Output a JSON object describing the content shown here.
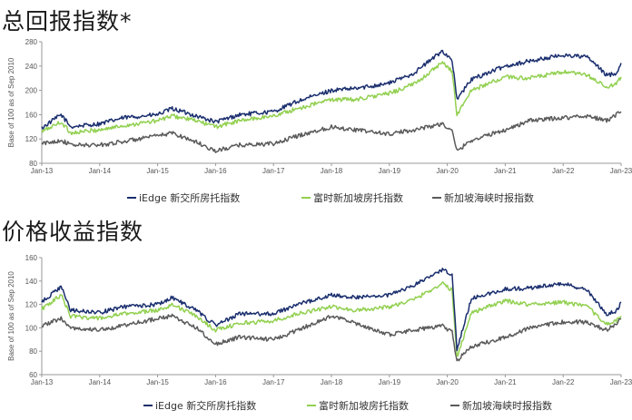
{
  "section1": {
    "title": "总回报指数*"
  },
  "section2": {
    "title": "价格收益指数"
  },
  "colors": {
    "series1": "#1a2e6e",
    "series2": "#92d050",
    "series3": "#5a5a5a",
    "axis": "#999999"
  },
  "chart_data": [
    {
      "type": "line",
      "ylabel": "Base of 100 as of Sep 2010",
      "ylim": [
        80,
        280
      ],
      "yticks": [
        80,
        120,
        160,
        200,
        240,
        280
      ],
      "xlim": [
        "2013-01",
        "2023-01"
      ],
      "xticks": [
        "Jan-13",
        "Jan-14",
        "Jan-15",
        "Jan-16",
        "Jan-17",
        "Jan-18",
        "Jan-19",
        "Jan-20",
        "Jan-21",
        "Jan-22",
        "Jan-23"
      ],
      "grid": false,
      "legend_position": "bottom",
      "x": [
        "2013-01",
        "2013-05",
        "2013-07",
        "2014-01",
        "2014-06",
        "2015-01",
        "2015-04",
        "2015-09",
        "2016-01",
        "2016-06",
        "2017-01",
        "2017-06",
        "2018-01",
        "2018-06",
        "2019-01",
        "2019-06",
        "2019-12",
        "2020-02",
        "2020-03",
        "2020-06",
        "2021-01",
        "2021-06",
        "2022-01",
        "2022-06",
        "2022-10",
        "2022-12",
        "2023-01"
      ],
      "series": [
        {
          "name": "iEdge 新交所房托指数",
          "values": [
            138,
            160,
            140,
            145,
            155,
            160,
            170,
            158,
            148,
            160,
            165,
            182,
            200,
            203,
            212,
            228,
            265,
            250,
            185,
            218,
            240,
            248,
            258,
            255,
            225,
            228,
            245
          ]
        },
        {
          "name": "富时新加坡房托指数",
          "values": [
            132,
            148,
            130,
            135,
            142,
            150,
            158,
            150,
            140,
            150,
            158,
            170,
            185,
            185,
            195,
            210,
            245,
            232,
            160,
            200,
            222,
            220,
            230,
            225,
            205,
            210,
            222
          ]
        },
        {
          "name": "新加坡海峡时报指数",
          "values": [
            112,
            118,
            110,
            110,
            116,
            125,
            130,
            115,
            100,
            110,
            112,
            125,
            140,
            135,
            128,
            135,
            145,
            132,
            100,
            118,
            135,
            150,
            155,
            158,
            150,
            160,
            165
          ]
        }
      ]
    },
    {
      "type": "line",
      "ylabel": "Base of 100 as of Sep 2010",
      "ylim": [
        60,
        160
      ],
      "yticks": [
        60,
        80,
        100,
        120,
        140,
        160
      ],
      "xlim": [
        "2013-01",
        "2023-01"
      ],
      "xticks": [
        "Jan-13",
        "Jan-14",
        "Jan-15",
        "Jan-16",
        "Jan-17",
        "Jan-18",
        "Jan-19",
        "Jan-20",
        "Jan-21",
        "Jan-22",
        "Jan-23"
      ],
      "grid": false,
      "legend_position": "bottom",
      "x": [
        "2013-01",
        "2013-05",
        "2013-07",
        "2014-01",
        "2014-06",
        "2015-01",
        "2015-04",
        "2015-09",
        "2016-01",
        "2016-06",
        "2017-01",
        "2017-06",
        "2018-01",
        "2018-06",
        "2019-01",
        "2019-06",
        "2019-12",
        "2020-02",
        "2020-03",
        "2020-06",
        "2021-01",
        "2021-06",
        "2022-01",
        "2022-06",
        "2022-10",
        "2022-12",
        "2023-01"
      ],
      "series": [
        {
          "name": "iEdge 新交所房托指数",
          "values": [
            122,
            135,
            115,
            113,
            118,
            120,
            126,
            115,
            102,
            112,
            112,
            120,
            128,
            126,
            128,
            136,
            150,
            146,
            82,
            125,
            133,
            134,
            138,
            132,
            112,
            114,
            122
          ]
        },
        {
          "name": "富时新加坡房托指数",
          "values": [
            116,
            128,
            110,
            108,
            112,
            115,
            120,
            110,
            98,
            104,
            106,
            112,
            118,
            115,
            118,
            124,
            138,
            132,
            75,
            113,
            123,
            120,
            122,
            118,
            103,
            106,
            110
          ]
        },
        {
          "name": "新加坡海峡时报指数",
          "values": [
            102,
            108,
            100,
            98,
            102,
            108,
            110,
            100,
            86,
            92,
            90,
            98,
            110,
            104,
            94,
            98,
            102,
            96,
            72,
            84,
            92,
            100,
            105,
            105,
            98,
            104,
            108
          ]
        }
      ]
    }
  ]
}
